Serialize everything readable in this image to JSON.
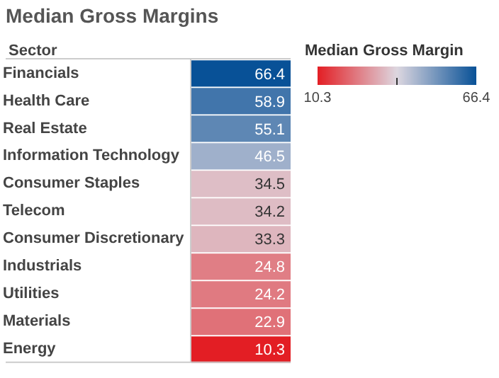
{
  "chart_data": {
    "type": "heatmap",
    "title": "Median Gross Margins",
    "ylabel": "Sector",
    "clabel": "Median Gross Margin",
    "categories": [
      null
    ],
    "y_categories": [
      "Financials",
      "Health Care",
      "Real Estate",
      "Information Technology",
      "Consumer Staples",
      "Telecom",
      "Consumer Discretionary",
      "Industrials",
      "Utilities",
      "Materials",
      "Energy"
    ],
    "cells": [
      [
        66.4
      ],
      [
        58.9
      ],
      [
        55.1
      ],
      [
        46.5
      ],
      [
        34.5
      ],
      [
        34.2
      ],
      [
        33.3
      ],
      [
        24.8
      ],
      [
        24.2
      ],
      [
        22.9
      ],
      [
        10.3
      ]
    ],
    "clim": [
      10.3,
      66.4
    ],
    "cticks": [
      10.3,
      {
        "value": 38.35,
        "label": null
      },
      66.4
    ],
    "data_labels": true
  }
}
